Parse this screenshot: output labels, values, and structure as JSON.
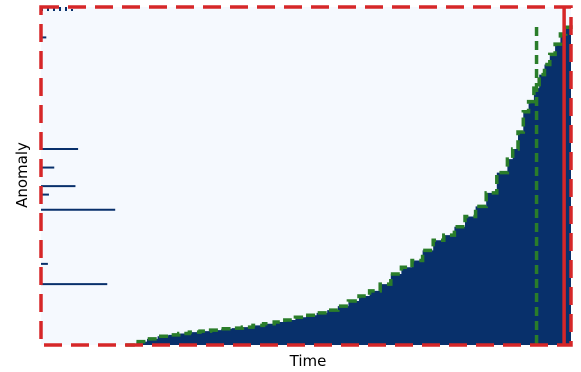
{
  "chart_data": {
    "type": "heatmap",
    "title": "",
    "xlabel": "Time",
    "ylabel": "Anomaly",
    "xlim": [
      0,
      100
    ],
    "ylim": [
      0,
      100
    ],
    "grid": false,
    "colors": {
      "background": "#f5f9fe",
      "filled": "#08306b",
      "red_box": "#d62728",
      "green_curve": "#2a7d2a",
      "short_marks": "#08306b"
    },
    "filled_boundary": [
      [
        16,
        0
      ],
      [
        18,
        1
      ],
      [
        20,
        1.8
      ],
      [
        22,
        2.6
      ],
      [
        24,
        3
      ],
      [
        26,
        3.4
      ],
      [
        28,
        3.8
      ],
      [
        30,
        4.1
      ],
      [
        32,
        4.4
      ],
      [
        34,
        4.8
      ],
      [
        36,
        5
      ],
      [
        38,
        5.3
      ],
      [
        40,
        5.8
      ],
      [
        42,
        6.3
      ],
      [
        44,
        6.8
      ],
      [
        46,
        7.4
      ],
      [
        48,
        8.2
      ],
      [
        50,
        8.8
      ],
      [
        52,
        9.5
      ],
      [
        54,
        10.3
      ],
      [
        56,
        11.5
      ],
      [
        58,
        13
      ],
      [
        60,
        14.5
      ],
      [
        62,
        16
      ],
      [
        64,
        18
      ],
      [
        66,
        21
      ],
      [
        68,
        23
      ],
      [
        70,
        25
      ],
      [
        72,
        28
      ],
      [
        74,
        31
      ],
      [
        76,
        32.5
      ],
      [
        78,
        35
      ],
      [
        80,
        38
      ],
      [
        82,
        41
      ],
      [
        84,
        45
      ],
      [
        86,
        51
      ],
      [
        88,
        55
      ],
      [
        89,
        58
      ],
      [
        90,
        63
      ],
      [
        91,
        69
      ],
      [
        92,
        72
      ],
      [
        93,
        76
      ],
      [
        94,
        80
      ],
      [
        95,
        83
      ],
      [
        96,
        86
      ],
      [
        97,
        89
      ],
      [
        98,
        92
      ],
      [
        99,
        94
      ],
      [
        100,
        96
      ]
    ],
    "red_box": {
      "x": [
        0,
        100
      ],
      "y": [
        0,
        100
      ]
    },
    "green_vertical_x": 93.5,
    "red_vertical_x": 98.7,
    "short_marks": [
      {
        "y": 99.7,
        "x_end": 5.5,
        "style": "dotted"
      },
      {
        "y": 99.1,
        "x_end": 6.5,
        "style": "dotted"
      },
      {
        "y": 91,
        "x_end": 1,
        "style": "solid"
      },
      {
        "y": 58,
        "x_end": 7,
        "style": "solid"
      },
      {
        "y": 52.5,
        "x_end": 2.5,
        "style": "solid"
      },
      {
        "y": 47,
        "x_end": 6.5,
        "style": "solid"
      },
      {
        "y": 44.5,
        "x_end": 1.5,
        "style": "solid"
      },
      {
        "y": 40,
        "x_end": 14,
        "style": "solid"
      },
      {
        "y": 24,
        "x_end": 1.3,
        "style": "solid"
      },
      {
        "y": 18,
        "x_end": 12.5,
        "style": "solid"
      }
    ]
  }
}
